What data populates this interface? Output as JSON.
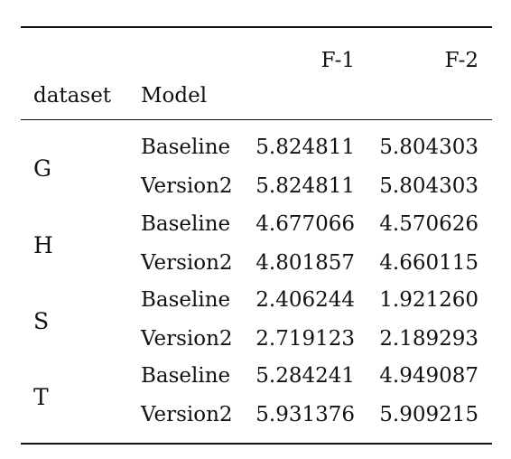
{
  "table": {
    "headers": {
      "f1": "F-1",
      "f2": "F-2",
      "dataset": "dataset",
      "model": "Model"
    },
    "groups": [
      {
        "dataset": "G",
        "rows": [
          {
            "model": "Baseline",
            "f1": "5.824811",
            "f2": "5.804303"
          },
          {
            "model": "Version2",
            "f1": "5.824811",
            "f2": "5.804303"
          }
        ]
      },
      {
        "dataset": "H",
        "rows": [
          {
            "model": "Baseline",
            "f1": "4.677066",
            "f2": "4.570626"
          },
          {
            "model": "Version2",
            "f1": "4.801857",
            "f2": "4.660115"
          }
        ]
      },
      {
        "dataset": "S",
        "rows": [
          {
            "model": "Baseline",
            "f1": "2.406244",
            "f2": "1.921260"
          },
          {
            "model": "Version2",
            "f1": "2.719123",
            "f2": "2.189293"
          }
        ]
      },
      {
        "dataset": "T",
        "rows": [
          {
            "model": "Baseline",
            "f1": "5.284241",
            "f2": "4.949087"
          },
          {
            "model": "Version2",
            "f1": "5.931376",
            "f2": "5.909215"
          }
        ]
      }
    ]
  }
}
